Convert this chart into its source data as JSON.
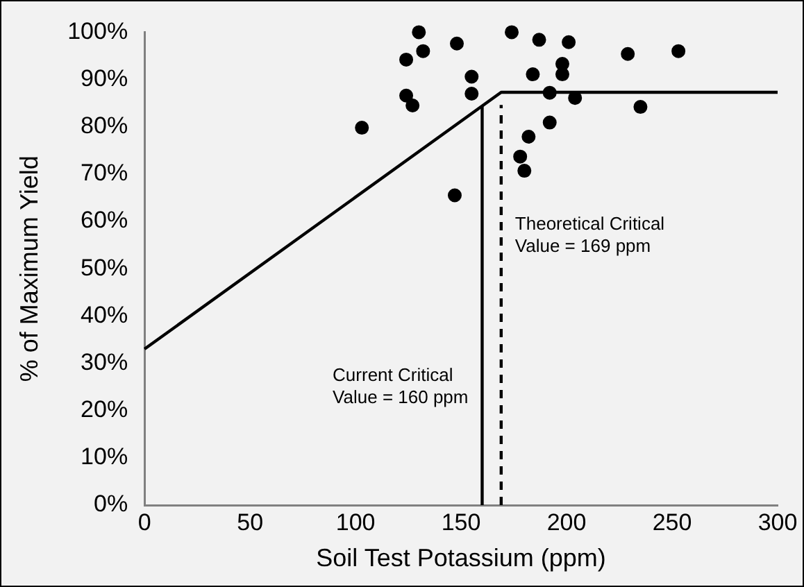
{
  "chart_data": {
    "type": "scatter",
    "xlabel": "Soil Test Potassium (ppm)",
    "ylabel": "% of Maximum Yield",
    "xlim": [
      0,
      300
    ],
    "xticks": [
      0,
      50,
      100,
      150,
      200,
      250,
      300
    ],
    "ylim": [
      0,
      100
    ],
    "yticks": [
      {
        "value": 0,
        "label": "0%"
      },
      {
        "value": 10,
        "label": "10%"
      },
      {
        "value": 20,
        "label": "20%"
      },
      {
        "value": 30,
        "label": "30%"
      },
      {
        "value": 40,
        "label": "40%"
      },
      {
        "value": 50,
        "label": "50%"
      },
      {
        "value": 60,
        "label": "60%"
      },
      {
        "value": 70,
        "label": "70%"
      },
      {
        "value": 80,
        "label": "80%"
      },
      {
        "value": 90,
        "label": "90%"
      },
      {
        "value": 100,
        "label": "100%"
      }
    ],
    "grid": false,
    "legend": false,
    "series": [
      {
        "color": "#000000",
        "marker": "circle",
        "x": [
          130,
          148,
          124,
          132,
          155,
          155,
          124,
          127,
          103,
          147,
          174,
          187,
          201,
          229,
          253,
          198,
          184,
          198,
          192,
          204,
          235,
          192,
          182,
          178,
          180
        ],
        "values": [
          100,
          97.6,
          94.2,
          96,
          90.6,
          87,
          86.6,
          84.5,
          79.8,
          65.5,
          100,
          98.4,
          97.9,
          95.4,
          96,
          93.3,
          91.1,
          91.1,
          87.2,
          86.1,
          84.2,
          80.9,
          77.9,
          73.7,
          70.7
        ]
      },
      {
        "type": "line",
        "color": "#000000",
        "marker": "none",
        "line_style": "solid",
        "x": [
          0,
          169,
          300
        ],
        "values": [
          33,
          87.3,
          87.3
        ]
      },
      {
        "type": "line",
        "color": "#000000",
        "marker": "none",
        "line_style": "solid",
        "x": [
          160,
          160
        ],
        "values": [
          0,
          84.4
        ]
      },
      {
        "type": "line",
        "color": "#000000",
        "marker": "none",
        "line_style": "dashed",
        "x": [
          169,
          169
        ],
        "values": [
          0,
          84.6
        ]
      }
    ],
    "annotations": [
      {
        "text": "Current Critical\nValue = 160 ppm",
        "x": 160,
        "y": 25
      },
      {
        "text": "Theoretical Critical\nValue = 169 ppm",
        "x": 169,
        "y": 57
      }
    ]
  }
}
